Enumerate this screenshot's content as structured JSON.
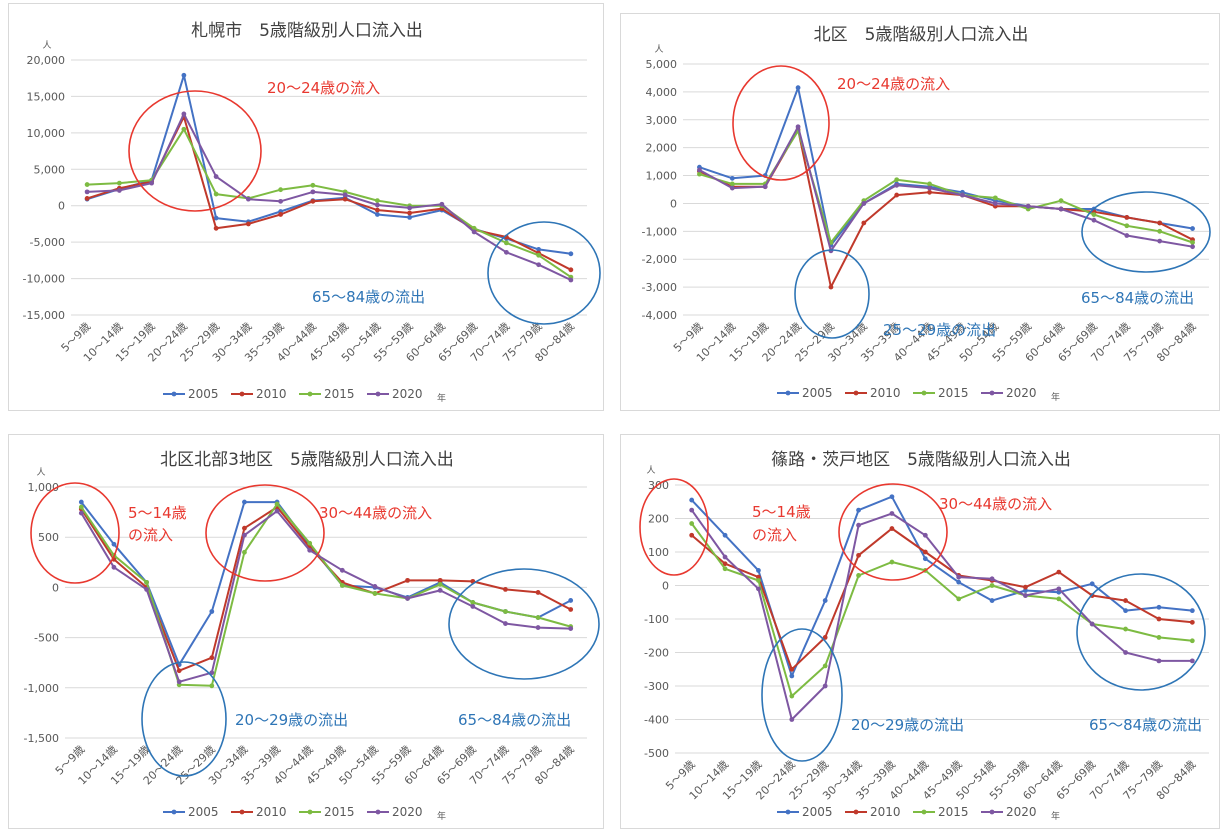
{
  "series_names": [
    "2005",
    "2010",
    "2015",
    "2020"
  ],
  "series_colors": [
    "#4472c4",
    "#c0392b",
    "#7dbb42",
    "#7e57a2"
  ],
  "annotation_colors": {
    "red": "#e8382f",
    "blue": "#2e75b6"
  },
  "chart_data": [
    {
      "type": "line",
      "title": "札幌市　5歳階級別人口流入出",
      "y_unit": "人",
      "x_unit": "年",
      "categories": [
        "5～9歳",
        "10～14歳",
        "15～19歳",
        "20～24歳",
        "25～29歳",
        "30～34歳",
        "35～39歳",
        "40～44歳",
        "45～49歳",
        "50～54歳",
        "55～59歳",
        "60～64歳",
        "65～69歳",
        "70～74歳",
        "75～79歳",
        "80～84歳"
      ],
      "ylim": [
        -15000,
        20000
      ],
      "yticks": [
        -15000,
        -10000,
        -5000,
        0,
        5000,
        10000,
        15000,
        20000
      ],
      "ytick_labels": [
        "-15,000",
        "-10,000",
        "-5,000",
        "0",
        "5,000",
        "10,000",
        "15,000",
        "20,000"
      ],
      "legend": "bottom",
      "grid": true,
      "series": [
        {
          "name": "2005",
          "values": [
            900,
            2300,
            3500,
            17900,
            -1700,
            -2200,
            -800,
            700,
            1100,
            -1200,
            -1600,
            -600,
            -3200,
            -4500,
            -6000,
            -6600
          ]
        },
        {
          "name": "2010",
          "values": [
            1000,
            2400,
            3300,
            12200,
            -3100,
            -2500,
            -1200,
            600,
            900,
            -600,
            -1000,
            -400,
            -3300,
            -4300,
            -6500,
            -8800
          ]
        },
        {
          "name": "2015",
          "values": [
            2900,
            3100,
            3500,
            10500,
            1600,
            1000,
            2200,
            2800,
            1900,
            700,
            0,
            0,
            -3100,
            -5100,
            -6800,
            -9800
          ]
        },
        {
          "name": "2020",
          "values": [
            1900,
            2100,
            3100,
            12600,
            4000,
            900,
            600,
            1900,
            1500,
            100,
            -300,
            200,
            -3600,
            -6400,
            -8100,
            -10200
          ]
        }
      ],
      "annotations": [
        {
          "text": "20～24歳の流入",
          "color": "red"
        },
        {
          "text": "65～84歳の流出",
          "color": "blue"
        }
      ]
    },
    {
      "type": "line",
      "title": "北区　5歳階級別人口流入出",
      "y_unit": "人",
      "x_unit": "年",
      "categories": [
        "5～9歳",
        "10～14歳",
        "15～19歳",
        "20～24歳",
        "25～29歳",
        "30～34歳",
        "35～39歳",
        "40～44歳",
        "45～49歳",
        "50～54歳",
        "55～59歳",
        "60～64歳",
        "65～69歳",
        "70～74歳",
        "75～79歳",
        "80～84歳"
      ],
      "ylim": [
        -4000,
        5000
      ],
      "yticks": [
        -4000,
        -3000,
        -2000,
        -1000,
        0,
        1000,
        2000,
        3000,
        4000,
        5000
      ],
      "ytick_labels": [
        "-4,000",
        "-3,000",
        "-2,000",
        "-1,000",
        "0",
        "1,000",
        "2,000",
        "3,000",
        "4,000",
        "5,000"
      ],
      "legend": "bottom",
      "grid": true,
      "series": [
        {
          "name": "2005",
          "values": [
            1300,
            900,
            1000,
            4150,
            -1500,
            0,
            700,
            600,
            400,
            100,
            -100,
            -200,
            -200,
            -500,
            -700,
            -900
          ]
        },
        {
          "name": "2010",
          "values": [
            1150,
            600,
            600,
            2650,
            -3000,
            -700,
            300,
            400,
            300,
            -100,
            -100,
            -200,
            -300,
            -500,
            -700,
            -1300
          ]
        },
        {
          "name": "2015",
          "values": [
            1050,
            700,
            700,
            2600,
            -1400,
            100,
            850,
            700,
            300,
            200,
            -200,
            100,
            -400,
            -800,
            -1000,
            -1400
          ]
        },
        {
          "name": "2020",
          "values": [
            1200,
            550,
            600,
            2750,
            -1700,
            0,
            650,
            550,
            300,
            0,
            -100,
            -200,
            -600,
            -1150,
            -1350,
            -1550
          ]
        }
      ],
      "annotations": [
        {
          "text": "20～24歳の流入",
          "color": "red"
        },
        {
          "text": "25～29歳の流出",
          "color": "blue"
        },
        {
          "text": "65～84歳の流出",
          "color": "blue"
        }
      ]
    },
    {
      "type": "line",
      "title": "北区北部3地区　5歳階級別人口流入出",
      "y_unit": "人",
      "x_unit": "年",
      "categories": [
        "5～9歳",
        "10～14歳",
        "15～19歳",
        "20～24歳",
        "25～29歳",
        "30～34歳",
        "35～39歳",
        "40～44歳",
        "45～49歳",
        "50～54歳",
        "55～59歳",
        "60～64歳",
        "65～69歳",
        "70～74歳",
        "75～79歳",
        "80～84歳"
      ],
      "ylim": [
        -1500,
        1000
      ],
      "yticks": [
        -1500,
        -1000,
        -500,
        0,
        500,
        1000
      ],
      "ytick_labels": [
        "-1,500",
        "-1,000",
        "-500",
        "0",
        "500",
        "1,000"
      ],
      "legend": "bottom",
      "grid": true,
      "series": [
        {
          "name": "2005",
          "values": [
            850,
            430,
            50,
            -770,
            -240,
            850,
            850,
            420,
            20,
            0,
            -100,
            50,
            -150,
            -240,
            -300,
            -130
          ]
        },
        {
          "name": "2010",
          "values": [
            780,
            280,
            0,
            -830,
            -700,
            590,
            800,
            400,
            50,
            -60,
            70,
            70,
            60,
            -20,
            -50,
            -220
          ]
        },
        {
          "name": "2015",
          "values": [
            800,
            320,
            50,
            -970,
            -980,
            350,
            830,
            440,
            20,
            -60,
            -110,
            30,
            -150,
            -240,
            -300,
            -390
          ]
        },
        {
          "name": "2020",
          "values": [
            740,
            200,
            -20,
            -940,
            -850,
            520,
            760,
            370,
            170,
            10,
            -110,
            -30,
            -190,
            -360,
            -400,
            -410
          ]
        }
      ],
      "annotations": [
        {
          "text": "5～14歳",
          "color": "red"
        },
        {
          "text": "の流入",
          "color": "red"
        },
        {
          "text": "30～44歳の流入",
          "color": "red"
        },
        {
          "text": "20～29歳の流出",
          "color": "blue"
        },
        {
          "text": "65～84歳の流出",
          "color": "blue"
        }
      ]
    },
    {
      "type": "line",
      "title": "篠路・茨戸地区　5歳階級別人口流入出",
      "y_unit": "人",
      "x_unit": "年",
      "categories": [
        "5～9歳",
        "10～14歳",
        "15～19歳",
        "20～24歳",
        "25～29歳",
        "30～34歳",
        "35～39歳",
        "40～44歳",
        "45～49歳",
        "50～54歳",
        "55～59歳",
        "60～64歳",
        "65～69歳",
        "70～74歳",
        "75～79歳",
        "80～84歳"
      ],
      "ylim": [
        -500,
        300
      ],
      "yticks": [
        -500,
        -400,
        -300,
        -200,
        -100,
        0,
        100,
        200,
        300
      ],
      "ytick_labels": [
        "-500",
        "-400",
        "-300",
        "-200",
        "-100",
        "0",
        "100",
        "200",
        "300"
      ],
      "legend": "bottom",
      "grid": true,
      "series": [
        {
          "name": "2005",
          "values": [
            255,
            150,
            45,
            -270,
            -45,
            225,
            265,
            80,
            10,
            -45,
            -15,
            -20,
            5,
            -75,
            -65,
            -75
          ]
        },
        {
          "name": "2010",
          "values": [
            150,
            65,
            25,
            -250,
            -155,
            90,
            170,
            100,
            30,
            15,
            -5,
            40,
            -30,
            -45,
            -100,
            -110
          ]
        },
        {
          "name": "2015",
          "values": [
            185,
            50,
            15,
            -330,
            -240,
            30,
            70,
            45,
            -40,
            0,
            -30,
            -40,
            -115,
            -130,
            -155,
            -165
          ]
        },
        {
          "name": "2020",
          "values": [
            225,
            85,
            -10,
            -400,
            -300,
            180,
            215,
            150,
            25,
            20,
            -30,
            -10,
            -115,
            -200,
            -225,
            -225
          ]
        }
      ],
      "annotations": [
        {
          "text": "5～14歳",
          "color": "red"
        },
        {
          "text": "の流入",
          "color": "red"
        },
        {
          "text": "30～44歳の流入",
          "color": "red"
        },
        {
          "text": "20～29歳の流出",
          "color": "blue"
        },
        {
          "text": "65～84歳の流出",
          "color": "blue"
        }
      ]
    }
  ]
}
